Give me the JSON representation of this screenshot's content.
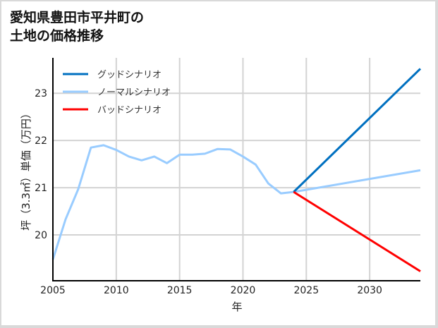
{
  "title_line1": "愛知県豊田市平井町の",
  "title_line2": "土地の価格推移",
  "chart_data": {
    "type": "line",
    "title": "愛知県豊田市平井町の土地の価格推移",
    "xlabel": "年",
    "ylabel": "坪（3.3㎡）単価（万円）",
    "xlim": [
      2005,
      2034
    ],
    "ylim": [
      19.03,
      23.75
    ],
    "xticks": [
      2005,
      2010,
      2015,
      2020,
      2025,
      2030
    ],
    "yticks": [
      20,
      21,
      22,
      23
    ],
    "grid": true,
    "legend_position": "upper left",
    "series": [
      {
        "name": "グッドシナリオ",
        "color": "#0070c0",
        "x": [
          2024,
          2034
        ],
        "values": [
          20.91,
          23.52
        ]
      },
      {
        "name": "ノーマルシナリオ",
        "color": "#99ccff",
        "x": [
          2005,
          2006,
          2007,
          2008,
          2009,
          2010,
          2011,
          2012,
          2013,
          2014,
          2015,
          2016,
          2017,
          2018,
          2019,
          2020,
          2021,
          2022,
          2023,
          2024,
          2034
        ],
        "values": [
          19.48,
          20.33,
          20.97,
          21.85,
          21.9,
          21.8,
          21.66,
          21.58,
          21.66,
          21.52,
          21.7,
          21.7,
          21.72,
          21.82,
          21.81,
          21.66,
          21.49,
          21.09,
          20.88,
          20.91,
          21.37
        ]
      },
      {
        "name": "バッドシナリオ",
        "color": "#ff0000",
        "x": [
          2024,
          2034
        ],
        "values": [
          20.91,
          19.23
        ]
      }
    ]
  }
}
